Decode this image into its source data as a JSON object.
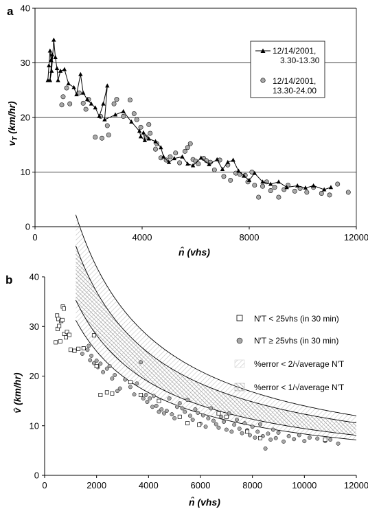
{
  "chart_data": [
    {
      "type": "line",
      "panel_label": "a",
      "xlabel": "n̂ (vhs)",
      "ylabel": "v_T (km/hr)",
      "xlim": [
        0,
        12000
      ],
      "ylim": [
        0,
        40
      ],
      "xticks": [
        "0",
        "4000",
        "8000",
        "12000"
      ],
      "yticks": [
        "0",
        "10",
        "20",
        "30",
        "40"
      ],
      "grid": "horizontal",
      "legend_position": "right",
      "series": [
        {
          "name": "12/14/2001, 3.30-13.30",
          "marker": "triangle",
          "connected": true,
          "points": [
            [
              480,
              26.8
            ],
            [
              520,
              29.5
            ],
            [
              560,
              32.2
            ],
            [
              600,
              30.5
            ],
            [
              640,
              31.5
            ],
            [
              560,
              26.8
            ],
            [
              620,
              28.5
            ],
            [
              700,
              34.2
            ],
            [
              760,
              31
            ],
            [
              820,
              29
            ],
            [
              860,
              26.8
            ],
            [
              950,
              28.5
            ],
            [
              1100,
              28.8
            ],
            [
              1250,
              26.2
            ],
            [
              1450,
              25.5
            ],
            [
              1550,
              24.2
            ],
            [
              1700,
              27.9
            ],
            [
              1800,
              24.5
            ],
            [
              1950,
              23.3
            ],
            [
              2100,
              22.5
            ],
            [
              2250,
              21.8
            ],
            [
              2400,
              20.2
            ],
            [
              2550,
              22.5
            ],
            [
              2700,
              25.8
            ],
            [
              2600,
              19.6
            ],
            [
              3000,
              20.5
            ],
            [
              3300,
              21.1
            ],
            [
              3600,
              19.2
            ],
            [
              3900,
              17.5
            ],
            [
              3950,
              16.5
            ],
            [
              4100,
              15.8
            ],
            [
              4050,
              17.2
            ],
            [
              4250,
              16.1
            ],
            [
              4500,
              15.6
            ],
            [
              4700,
              14.5
            ],
            [
              4800,
              12.8
            ],
            [
              5000,
              11.8
            ],
            [
              5200,
              12.5
            ],
            [
              5500,
              12.8
            ],
            [
              5700,
              11.5
            ],
            [
              5900,
              11.2
            ],
            [
              6200,
              12.6
            ],
            [
              6500,
              11.4
            ],
            [
              6800,
              12.3
            ],
            [
              7000,
              10.5
            ],
            [
              7200,
              11.8
            ],
            [
              7400,
              12.2
            ],
            [
              7600,
              10.2
            ],
            [
              7800,
              9.3
            ],
            [
              8000,
              8.5
            ],
            [
              8200,
              9.8
            ],
            [
              8500,
              8.2
            ],
            [
              8800,
              7.8
            ],
            [
              9100,
              8.2
            ],
            [
              9400,
              7.2
            ],
            [
              9800,
              7.5
            ],
            [
              10100,
              7.1
            ],
            [
              10400,
              7.5
            ],
            [
              10800,
              6.8
            ],
            [
              11050,
              7.2
            ]
          ]
        },
        {
          "name": "12/14/2001, 13.30-24.00",
          "marker": "circle",
          "connected": false,
          "points": [
            [
              1000,
              22.3
            ],
            [
              1050,
              23.8
            ],
            [
              1180,
              25.4
            ],
            [
              1300,
              22.5
            ],
            [
              1650,
              24.5
            ],
            [
              1800,
              22.6
            ],
            [
              1900,
              21.5
            ],
            [
              2000,
              23.3
            ],
            [
              2250,
              16.4
            ],
            [
              2450,
              20.2
            ],
            [
              2500,
              16.2
            ],
            [
              2750,
              16.8
            ],
            [
              2700,
              18.5
            ],
            [
              2950,
              22.5
            ],
            [
              3050,
              23.3
            ],
            [
              3300,
              20.2
            ],
            [
              3550,
              23.2
            ],
            [
              3700,
              20.7
            ],
            [
              3800,
              19.6
            ],
            [
              3950,
              18.2
            ],
            [
              4150,
              16.4
            ],
            [
              4250,
              18.7
            ],
            [
              4300,
              17.1
            ],
            [
              4500,
              14.2
            ],
            [
              4550,
              15.2
            ],
            [
              4700,
              12.6
            ],
            [
              4900,
              12.2
            ],
            [
              5050,
              12.8
            ],
            [
              5250,
              13.5
            ],
            [
              5400,
              11.7
            ],
            [
              5600,
              13.8
            ],
            [
              5700,
              14.5
            ],
            [
              5800,
              15.2
            ],
            [
              5900,
              12.3
            ],
            [
              6000,
              12
            ],
            [
              6100,
              11.5
            ],
            [
              6300,
              12.5
            ],
            [
              6400,
              12.1
            ],
            [
              6550,
              11.8
            ],
            [
              6700,
              10.4
            ],
            [
              6900,
              12.2
            ],
            [
              7050,
              9.2
            ],
            [
              7200,
              11.3
            ],
            [
              7300,
              8.5
            ],
            [
              7500,
              9.8
            ],
            [
              7650,
              9.6
            ],
            [
              7850,
              9.4
            ],
            [
              7950,
              8.2
            ],
            [
              8100,
              10
            ],
            [
              8200,
              7.6
            ],
            [
              8350,
              5.4
            ],
            [
              8500,
              7.4
            ],
            [
              8650,
              8.2
            ],
            [
              8800,
              6.6
            ],
            [
              8950,
              7.2
            ],
            [
              9100,
              5.4
            ],
            [
              9300,
              6.8
            ],
            [
              9450,
              7.6
            ],
            [
              9700,
              6.5
            ],
            [
              9900,
              7
            ],
            [
              10150,
              6.3
            ],
            [
              10400,
              7.2
            ],
            [
              10700,
              6.1
            ],
            [
              11000,
              5.8
            ],
            [
              11300,
              7.8
            ],
            [
              11700,
              6.3
            ]
          ]
        }
      ]
    },
    {
      "type": "scatter",
      "panel_label": "b",
      "xlabel": "n̂ (vhs)",
      "ylabel": "v̂ (km/hr)",
      "xlim": [
        0,
        12000
      ],
      "ylim": [
        0,
        40
      ],
      "xticks": [
        "0",
        "2000",
        "4000",
        "6000",
        "8000",
        "10000",
        "12000"
      ],
      "yticks": [
        "0",
        "10",
        "20",
        "30",
        "40"
      ],
      "grid": "none",
      "legend_position": "right",
      "legend": [
        {
          "label": "N′T < 25vhs (in 30 min)",
          "symbol": "open-square"
        },
        {
          "label": "N′T ≥ 25vhs (in 30 min)",
          "symbol": "gray-circle"
        },
        {
          "label": "%error < 2/√average N′T",
          "symbol": "light-hatch"
        },
        {
          "label": "%error < 1/√average N′T",
          "symbol": "dark-hatch"
        }
      ],
      "bands": {
        "description_curves": "v = A / (n + 2000)",
        "center_A": 130000,
        "inner_lower_A": 113000,
        "inner_upper_A": 148000,
        "outer_lower_A": 100000,
        "outer_upper_A": 168000,
        "x_start": 1200,
        "x_end": 12000
      },
      "series": [
        {
          "name": "N′T < 25vhs (in 30 min)",
          "marker": "open-square",
          "points": [
            [
              430,
              26.8
            ],
            [
              480,
              32.2
            ],
            [
              500,
              29.5
            ],
            [
              530,
              31.5
            ],
            [
              560,
              30.1
            ],
            [
              600,
              27
            ],
            [
              640,
              31.1
            ],
            [
              680,
              31.3
            ],
            [
              700,
              34
            ],
            [
              740,
              33.6
            ],
            [
              760,
              28.5
            ],
            [
              820,
              27.8
            ],
            [
              860,
              28.9
            ],
            [
              950,
              28.3
            ],
            [
              1000,
              25.3
            ],
            [
              1150,
              25.1
            ],
            [
              1300,
              25.5
            ],
            [
              1500,
              25.6
            ],
            [
              1900,
              28.2
            ],
            [
              2000,
              22
            ],
            [
              2150,
              16.2
            ],
            [
              2400,
              16.7
            ],
            [
              2600,
              16.5
            ],
            [
              3300,
              18.8
            ],
            [
              3700,
              16.2
            ],
            [
              4400,
              15
            ],
            [
              5200,
              11.8
            ],
            [
              5500,
              10.5
            ],
            [
              5950,
              10.2
            ],
            [
              6700,
              12.5
            ],
            [
              7000,
              11.8
            ],
            [
              7800,
              8.8
            ],
            [
              8300,
              7.5
            ],
            [
              10800,
              7.2
            ]
          ]
        },
        {
          "name": "N′T ≥ 25vhs (in 30 min)",
          "marker": "gray-circle",
          "points": [
            [
              1450,
              24.5
            ],
            [
              1650,
              25.3
            ],
            [
              1700,
              26.1
            ],
            [
              1750,
              23.2
            ],
            [
              1800,
              24.1
            ],
            [
              1900,
              22.6
            ],
            [
              2000,
              23.1
            ],
            [
              2050,
              21.8
            ],
            [
              2150,
              22.5
            ],
            [
              2250,
              20.8
            ],
            [
              2400,
              21.5
            ],
            [
              2500,
              22
            ],
            [
              2600,
              19.5
            ],
            [
              2700,
              20.2
            ],
            [
              2800,
              17
            ],
            [
              2900,
              17.5
            ],
            [
              3100,
              19.3
            ],
            [
              3300,
              17.8
            ],
            [
              3450,
              16.3
            ],
            [
              3550,
              18.5
            ],
            [
              3700,
              22.8
            ],
            [
              3800,
              15.5
            ],
            [
              3900,
              16.2
            ],
            [
              3950,
              14.8
            ],
            [
              4050,
              15.5
            ],
            [
              4150,
              13.8
            ],
            [
              4200,
              16
            ],
            [
              4300,
              14
            ],
            [
              4400,
              12.8
            ],
            [
              4500,
              13.3
            ],
            [
              4600,
              12.5
            ],
            [
              4700,
              13
            ],
            [
              4800,
              15.5
            ],
            [
              4900,
              12.3
            ],
            [
              5000,
              11.5
            ],
            [
              5100,
              13.8
            ],
            [
              5200,
              14.5
            ],
            [
              5300,
              13.5
            ],
            [
              5400,
              12.8
            ],
            [
              5500,
              15.2
            ],
            [
              5600,
              12
            ],
            [
              5700,
              11.2
            ],
            [
              5800,
              13.3
            ],
            [
              5900,
              12.6
            ],
            [
              6000,
              10.4
            ],
            [
              6100,
              12.1
            ],
            [
              6200,
              9.8
            ],
            [
              6300,
              11.5
            ],
            [
              6400,
              13.5
            ],
            [
              6500,
              11
            ],
            [
              6600,
              10.3
            ],
            [
              6700,
              9.6
            ],
            [
              6800,
              11.8
            ],
            [
              6900,
              10.8
            ],
            [
              7000,
              9.2
            ],
            [
              7100,
              12.5
            ],
            [
              7200,
              8.8
            ],
            [
              7300,
              10.2
            ],
            [
              7400,
              11.2
            ],
            [
              7500,
              9.4
            ],
            [
              7600,
              8.5
            ],
            [
              7700,
              10.5
            ],
            [
              7800,
              9.1
            ],
            [
              7900,
              8.1
            ],
            [
              8000,
              9.8
            ],
            [
              8100,
              7.6
            ],
            [
              8200,
              8.8
            ],
            [
              8300,
              10.3
            ],
            [
              8400,
              7.9
            ],
            [
              8500,
              5.4
            ],
            [
              8600,
              8.4
            ],
            [
              8700,
              7.2
            ],
            [
              8800,
              9.2
            ],
            [
              8900,
              7.5
            ],
            [
              9000,
              8.6
            ],
            [
              9200,
              6.8
            ],
            [
              9400,
              7.9
            ],
            [
              9600,
              7.3
            ],
            [
              9800,
              8.1
            ],
            [
              10000,
              6.9
            ],
            [
              10200,
              7.6
            ],
            [
              10500,
              7.4
            ],
            [
              10800,
              6.9
            ],
            [
              11000,
              7.2
            ],
            [
              11300,
              6.4
            ]
          ]
        }
      ]
    }
  ],
  "colors": {
    "axis": "#000000",
    "grid": "#000000",
    "circle_fill": "#a8a8a8",
    "hatch_light": "#c8c8c8",
    "hatch_dark": "#6e6e6e"
  }
}
